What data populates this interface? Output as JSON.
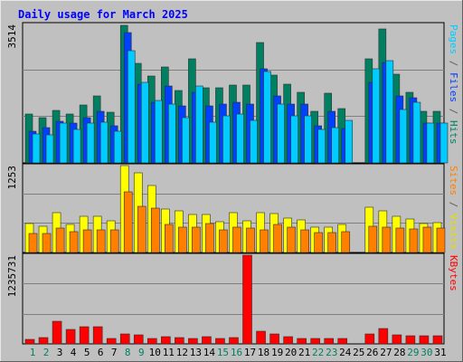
{
  "chart_data": [
    {
      "type": "bar",
      "title": "Daily usage for March 2025",
      "ymax_label": "3514",
      "side_labels": [
        {
          "text": "Pages",
          "color": "#00ccff"
        },
        {
          "text": " / ",
          "color": "#606060"
        },
        {
          "text": "Files",
          "color": "#0040ff"
        },
        {
          "text": " / ",
          "color": "#606060"
        },
        {
          "text": "Hits",
          "color": "#008060"
        }
      ],
      "categories": [
        "1",
        "2",
        "3",
        "4",
        "5",
        "6",
        "7",
        "8",
        "9",
        "10",
        "11",
        "12",
        "13",
        "14",
        "15",
        "16",
        "17",
        "18",
        "19",
        "20",
        "21",
        "22",
        "23",
        "24",
        "25",
        "26",
        "27",
        "28",
        "29",
        "30",
        "31"
      ],
      "weekend_days": [
        "1",
        "2",
        "8",
        "9",
        "15",
        "16",
        "22",
        "23",
        "29",
        "30"
      ],
      "ylim": [
        0,
        3514
      ],
      "series": [
        {
          "name": "Hits",
          "color": "#008060",
          "values": [
            1230,
            1150,
            1340,
            1250,
            1480,
            1700,
            1290,
            3500,
            2530,
            2200,
            2430,
            1830,
            2650,
            1900,
            1900,
            1980,
            1980,
            3050,
            2230,
            2000,
            1800,
            1300,
            1760,
            1370,
            0,
            2650,
            3400,
            2250,
            1800,
            1300,
            1300
          ]
        },
        {
          "name": "Files",
          "color": "#0040ff",
          "values": [
            800,
            900,
            1050,
            1000,
            1150,
            1300,
            950,
            3300,
            2000,
            1550,
            1950,
            1450,
            1800,
            1450,
            1500,
            1550,
            1500,
            2400,
            1700,
            1500,
            1500,
            950,
            1300,
            880,
            0,
            2050,
            2550,
            1700,
            1650,
            1000,
            1000
          ]
        },
        {
          "name": "Pages",
          "color": "#00ccff",
          "values": [
            740,
            720,
            1000,
            850,
            1000,
            1040,
            800,
            2850,
            2050,
            1580,
            1500,
            1150,
            1950,
            1030,
            1200,
            1230,
            1080,
            2320,
            1500,
            1200,
            1200,
            850,
            900,
            1080,
            0,
            2400,
            2600,
            1350,
            1550,
            1000,
            1000
          ]
        }
      ]
    },
    {
      "type": "bar",
      "ymax_label": "1253",
      "side_labels": [
        {
          "text": "Sites",
          "color": "#ff8000"
        },
        {
          "text": " / ",
          "color": "#606060"
        },
        {
          "text": "Visits",
          "color": "#e0e000"
        }
      ],
      "categories": [
        "1",
        "2",
        "3",
        "4",
        "5",
        "6",
        "7",
        "8",
        "9",
        "10",
        "11",
        "12",
        "13",
        "14",
        "15",
        "16",
        "17",
        "18",
        "19",
        "20",
        "21",
        "22",
        "23",
        "24",
        "25",
        "26",
        "27",
        "28",
        "29",
        "30",
        "31"
      ],
      "ylim": [
        0,
        1253
      ],
      "series": [
        {
          "name": "Visits",
          "color": "#ffff00",
          "values": [
            420,
            380,
            580,
            410,
            520,
            520,
            460,
            1253,
            1150,
            970,
            620,
            600,
            550,
            550,
            450,
            570,
            460,
            580,
            560,
            490,
            470,
            370,
            370,
            400,
            0,
            650,
            600,
            520,
            480,
            420,
            430
          ]
        },
        {
          "name": "Sites",
          "color": "#ff8000",
          "values": [
            280,
            270,
            350,
            300,
            330,
            320,
            320,
            870,
            660,
            640,
            400,
            370,
            370,
            420,
            330,
            360,
            350,
            330,
            400,
            370,
            330,
            290,
            290,
            300,
            0,
            380,
            370,
            350,
            340,
            360,
            350
          ]
        }
      ]
    },
    {
      "type": "bar",
      "ymax_label": "1235731",
      "side_labels": [
        {
          "text": "KBytes",
          "color": "#ff0000"
        }
      ],
      "categories": [
        "1",
        "2",
        "3",
        "4",
        "5",
        "6",
        "7",
        "8",
        "9",
        "10",
        "11",
        "12",
        "13",
        "14",
        "15",
        "16",
        "17",
        "18",
        "19",
        "20",
        "21",
        "22",
        "23",
        "24",
        "25",
        "26",
        "27",
        "28",
        "29",
        "30",
        "31"
      ],
      "ylim": [
        0,
        1235731
      ],
      "series": [
        {
          "name": "KBytes",
          "color": "#ff0000",
          "values": [
            60000,
            90000,
            320000,
            200000,
            240000,
            235000,
            80000,
            140000,
            120000,
            80000,
            100000,
            85000,
            70000,
            100000,
            75000,
            90000,
            1235731,
            180000,
            140000,
            100000,
            80000,
            80000,
            80000,
            80000,
            0,
            135000,
            210000,
            120000,
            110000,
            110000,
            110000
          ]
        }
      ]
    }
  ]
}
